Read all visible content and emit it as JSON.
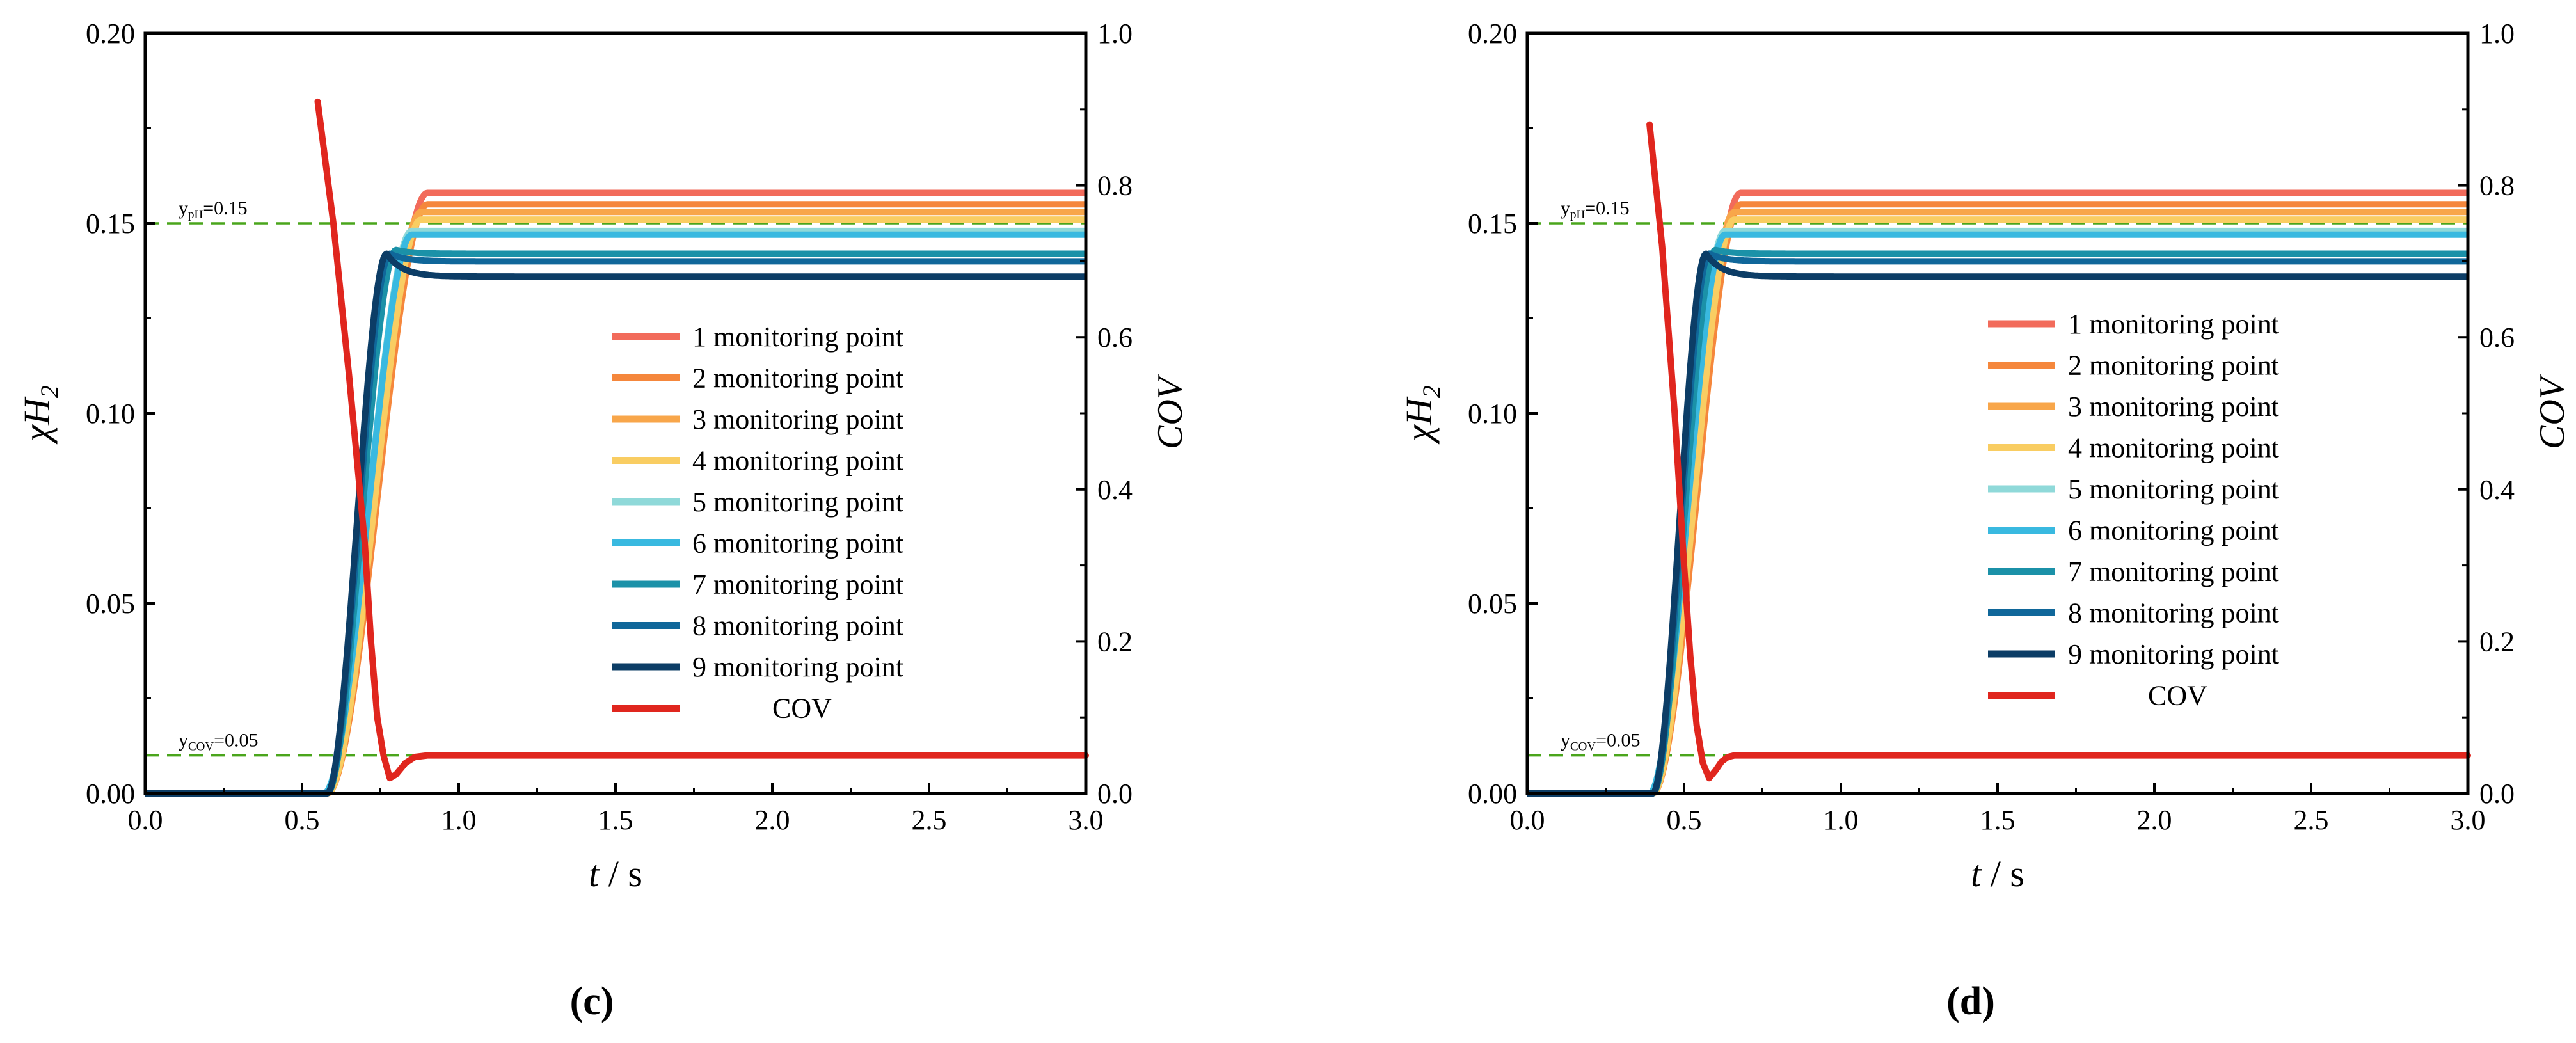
{
  "chart_data": [
    {
      "type": "line",
      "panel_label": "(c)",
      "xlabel_italic": "t",
      "xlabel_rest": " / s",
      "ylabel_left_base": "χH",
      "ylabel_left_sub": "2",
      "ylabel_right": "COV",
      "xlim": [
        0,
        3.0
      ],
      "ylim_left": [
        0,
        0.2
      ],
      "ylim_right": [
        0,
        1.0
      ],
      "xticks": [
        "0.0",
        "0.5",
        "1.0",
        "1.5",
        "2.0",
        "2.5",
        "3.0"
      ],
      "yticks_left": [
        "0.00",
        "0.05",
        "0.10",
        "0.15",
        "0.20"
      ],
      "yticks_right": [
        "0.0",
        "0.2",
        "0.4",
        "0.6",
        "0.8",
        "1.0"
      ],
      "threshold_lines": [
        {
          "label": "y",
          "label_sub": "pH",
          "label_suffix": "=0.15",
          "value": 0.15
        },
        {
          "label": "y",
          "label_sub": "COV",
          "label_suffix": "=0.05",
          "value": 0.01
        }
      ],
      "legend_position": "center-right",
      "series": [
        {
          "name": "1 monitoring point",
          "color": "#f26b5b",
          "onset": 0.58,
          "rise_end": 0.9,
          "final": 0.158,
          "overshoot": 0
        },
        {
          "name": "2 monitoring point",
          "color": "#f5873c",
          "onset": 0.58,
          "rise_end": 0.9,
          "final": 0.155,
          "overshoot": 0
        },
        {
          "name": "3 monitoring point",
          "color": "#f8a64a",
          "onset": 0.58,
          "rise_end": 0.88,
          "final": 0.153,
          "overshoot": 0
        },
        {
          "name": "4 monitoring point",
          "color": "#f9cd62",
          "onset": 0.58,
          "rise_end": 0.88,
          "final": 0.151,
          "overshoot": 0
        },
        {
          "name": "5 monitoring point",
          "color": "#8fd9d9",
          "onset": 0.57,
          "rise_end": 0.85,
          "final": 0.148,
          "overshoot": 0
        },
        {
          "name": "6 monitoring point",
          "color": "#39b9e0",
          "onset": 0.57,
          "rise_end": 0.85,
          "final": 0.147,
          "overshoot": 0
        },
        {
          "name": "7 monitoring point",
          "color": "#1b91a8",
          "onset": 0.58,
          "rise_end": 0.8,
          "final": 0.142,
          "overshoot": 0.001
        },
        {
          "name": "8 monitoring point",
          "color": "#10679a",
          "onset": 0.58,
          "rise_end": 0.78,
          "final": 0.14,
          "overshoot": 0.002
        },
        {
          "name": "9 monitoring point",
          "color": "#0c3d66",
          "onset": 0.58,
          "rise_end": 0.77,
          "final": 0.136,
          "overshoot": 0.006
        }
      ],
      "cov_series": {
        "name": "COV",
        "color": "#e0261e",
        "x": [
          0.55,
          0.6,
          0.65,
          0.7,
          0.72,
          0.74,
          0.76,
          0.78,
          0.8,
          0.83,
          0.86,
          0.9,
          1.0,
          3.0
        ],
        "y": [
          0.91,
          0.75,
          0.55,
          0.33,
          0.2,
          0.1,
          0.05,
          0.02,
          0.025,
          0.04,
          0.048,
          0.05,
          0.05,
          0.05
        ]
      }
    },
    {
      "type": "line",
      "panel_label": "(d)",
      "xlabel_italic": "t",
      "xlabel_rest": " / s",
      "ylabel_left_base": "χH",
      "ylabel_left_sub": "2",
      "ylabel_right": "COV",
      "xlim": [
        0,
        3.0
      ],
      "ylim_left": [
        0,
        0.2
      ],
      "ylim_right": [
        0,
        1.0
      ],
      "xticks": [
        "0.0",
        "0.5",
        "1.0",
        "1.5",
        "2.0",
        "2.5",
        "3.0"
      ],
      "yticks_left": [
        "0.00",
        "0.05",
        "0.10",
        "0.15",
        "0.20"
      ],
      "yticks_right": [
        "0.0",
        "0.2",
        "0.4",
        "0.6",
        "0.8",
        "1.0"
      ],
      "threshold_lines": [
        {
          "label": "y",
          "label_sub": "pH",
          "label_suffix": "=0.15",
          "value": 0.15
        },
        {
          "label": "y",
          "label_sub": "COV",
          "label_suffix": "=0.05",
          "value": 0.01
        }
      ],
      "legend_position": "center-right",
      "series": [
        {
          "name": "1 monitoring point",
          "color": "#f26b5b",
          "onset": 0.4,
          "rise_end": 0.68,
          "final": 0.158,
          "overshoot": 0
        },
        {
          "name": "2 monitoring point",
          "color": "#f5873c",
          "onset": 0.4,
          "rise_end": 0.68,
          "final": 0.155,
          "overshoot": 0
        },
        {
          "name": "3 monitoring point",
          "color": "#f8a64a",
          "onset": 0.4,
          "rise_end": 0.66,
          "final": 0.153,
          "overshoot": 0
        },
        {
          "name": "4 monitoring point",
          "color": "#f9cd62",
          "onset": 0.4,
          "rise_end": 0.66,
          "final": 0.151,
          "overshoot": 0
        },
        {
          "name": "5 monitoring point",
          "color": "#8fd9d9",
          "onset": 0.39,
          "rise_end": 0.63,
          "final": 0.148,
          "overshoot": 0
        },
        {
          "name": "6 monitoring point",
          "color": "#39b9e0",
          "onset": 0.39,
          "rise_end": 0.63,
          "final": 0.147,
          "overshoot": 0
        },
        {
          "name": "7 monitoring point",
          "color": "#1b91a8",
          "onset": 0.4,
          "rise_end": 0.6,
          "final": 0.142,
          "overshoot": 0.001
        },
        {
          "name": "8 monitoring point",
          "color": "#10679a",
          "onset": 0.4,
          "rise_end": 0.58,
          "final": 0.14,
          "overshoot": 0.002
        },
        {
          "name": "9 monitoring point",
          "color": "#0c3d66",
          "onset": 0.4,
          "rise_end": 0.57,
          "final": 0.136,
          "overshoot": 0.006
        }
      ],
      "cov_series": {
        "name": "COV",
        "color": "#e0261e",
        "x": [
          0.39,
          0.43,
          0.47,
          0.5,
          0.52,
          0.54,
          0.56,
          0.58,
          0.6,
          0.62,
          0.64,
          0.66,
          0.75,
          3.0
        ],
        "y": [
          0.88,
          0.72,
          0.5,
          0.3,
          0.18,
          0.09,
          0.04,
          0.02,
          0.03,
          0.042,
          0.048,
          0.05,
          0.05,
          0.05
        ]
      }
    }
  ]
}
